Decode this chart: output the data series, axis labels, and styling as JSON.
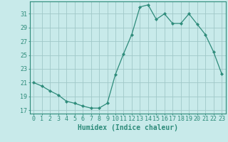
{
  "x": [
    0,
    1,
    2,
    3,
    4,
    5,
    6,
    7,
    8,
    9,
    10,
    11,
    12,
    13,
    14,
    15,
    16,
    17,
    18,
    19,
    20,
    21,
    22,
    23
  ],
  "y": [
    21.0,
    20.5,
    19.8,
    19.2,
    18.3,
    18.0,
    17.6,
    17.3,
    17.3,
    18.0,
    22.2,
    25.2,
    28.0,
    32.0,
    32.3,
    30.2,
    31.0,
    29.6,
    29.6,
    31.0,
    29.5,
    28.0,
    25.5,
    22.3
  ],
  "line_color": "#2d8b7a",
  "marker": "D",
  "marker_size": 2.2,
  "bg_color": "#c8eaea",
  "grid_color": "#a0c8c8",
  "xlabel": "Humidex (Indice chaleur)",
  "ylim": [
    16.5,
    32.8
  ],
  "xlim": [
    -0.5,
    23.5
  ],
  "yticks": [
    17,
    19,
    21,
    23,
    25,
    27,
    29,
    31
  ],
  "xticks": [
    0,
    1,
    2,
    3,
    4,
    5,
    6,
    7,
    8,
    9,
    10,
    11,
    12,
    13,
    14,
    15,
    16,
    17,
    18,
    19,
    20,
    21,
    22,
    23
  ],
  "xtick_labels": [
    "0",
    "1",
    "2",
    "3",
    "4",
    "5",
    "6",
    "7",
    "8",
    "9",
    "10",
    "11",
    "12",
    "13",
    "14",
    "15",
    "16",
    "17",
    "18",
    "19",
    "20",
    "21",
    "22",
    "23"
  ],
  "axis_color": "#2d8b7a",
  "tick_color": "#2d8b7a",
  "label_fontsize": 7,
  "tick_fontsize": 6
}
